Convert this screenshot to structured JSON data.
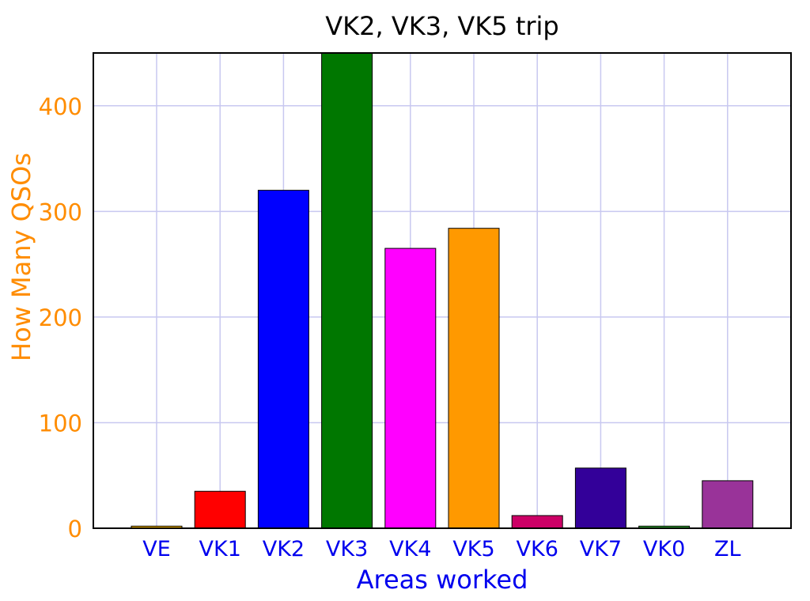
{
  "chart_data": {
    "type": "bar",
    "title": "VK2, VK3, VK5 trip",
    "xlabel": "Areas worked",
    "ylabel": "How Many QSOs",
    "categories": [
      "VE",
      "VK1",
      "VK2",
      "VK3",
      "VK4",
      "VK5",
      "VK6",
      "VK7",
      "VK0",
      "ZL"
    ],
    "values": [
      2,
      35,
      320,
      450,
      265,
      284,
      12,
      57,
      2,
      45
    ],
    "bar_colors": [
      "#f4b400",
      "#ff0000",
      "#0000ff",
      "#007700",
      "#ff00ff",
      "#ff9900",
      "#cc0066",
      "#330099",
      "#33aa33",
      "#993399"
    ],
    "ylim": [
      0,
      450
    ],
    "yticks": [
      0,
      100,
      200,
      300,
      400
    ],
    "grid": true,
    "grid_color": "#c8c8f0",
    "ylabel_color": "#ff8c00",
    "xlabel_color": "#0000ee",
    "legend": "none"
  }
}
